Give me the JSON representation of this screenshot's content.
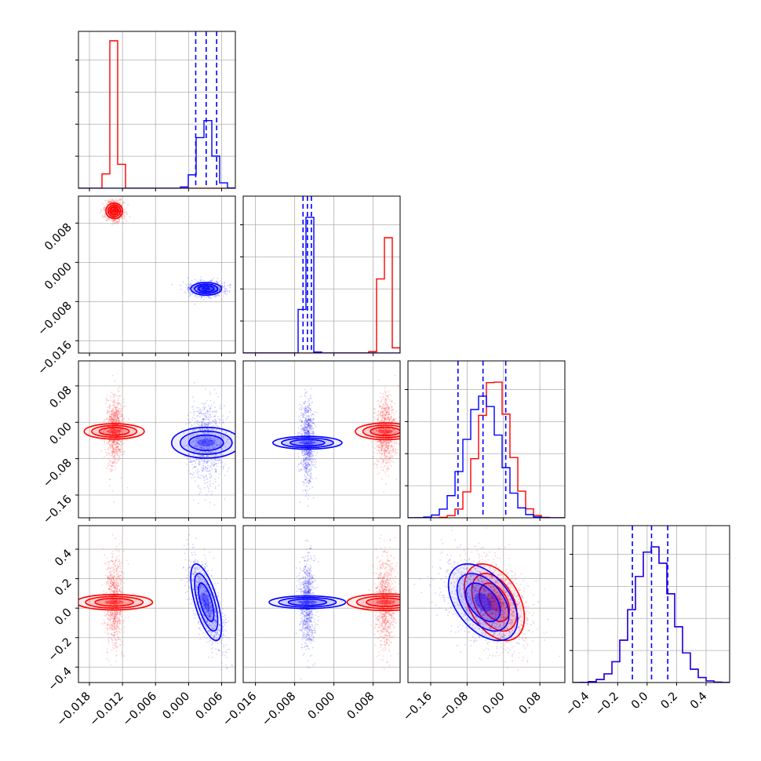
{
  "chart_data": {
    "type": "corner",
    "grid": true,
    "series": [
      {
        "color": "#ff0000"
      },
      {
        "color": "#0000ff"
      }
    ],
    "parameters": [
      {
        "range": [
          -0.02,
          0.0085
        ],
        "ticks": [
          "−0.018",
          "−0.012",
          "−0.006",
          "0.000",
          "0.006"
        ],
        "tick_values": [
          -0.018,
          -0.012,
          -0.006,
          0.0,
          0.006
        ]
      },
      {
        "range": [
          -0.0185,
          0.0135
        ],
        "ticks": [
          "−0.016",
          "−0.008",
          "0.000",
          "0.008"
        ],
        "tick_values": [
          -0.016,
          -0.008,
          0.0,
          0.008
        ]
      },
      {
        "range": [
          -0.21,
          0.135
        ],
        "ticks": [
          "−0.16",
          "−0.08",
          "0.00",
          "0.08"
        ],
        "tick_values": [
          -0.16,
          -0.08,
          0.0,
          0.08
        ]
      },
      {
        "range": [
          -0.505,
          0.56
        ],
        "ticks": [
          "−0.4",
          "−0.2",
          "0.0",
          "0.2",
          "0.4"
        ],
        "tick_values": [
          -0.4,
          -0.2,
          0.0,
          0.2,
          0.4
        ]
      }
    ],
    "posteriors": {
      "red": {
        "means": [
          -0.0135,
          0.0105,
          -0.02,
          0.04
        ],
        "sds": [
          0.0007,
          0.00085,
          0.033,
          0.13
        ]
      },
      "blue": {
        "means": [
          0.0032,
          -0.0054,
          -0.045,
          0.04
        ],
        "sds": [
          0.0014,
          0.00065,
          0.038,
          0.13
        ]
      }
    },
    "quantile_lines": {
      "color": "#0000ff",
      "style": "dashed",
      "values": [
        [
          0.0013,
          0.0032,
          0.0051
        ],
        [
          -0.0063,
          -0.0054,
          -0.0046
        ],
        [
          -0.1,
          -0.045,
          0.005
        ],
        [
          -0.1,
          0.03,
          0.14
        ]
      ]
    }
  }
}
